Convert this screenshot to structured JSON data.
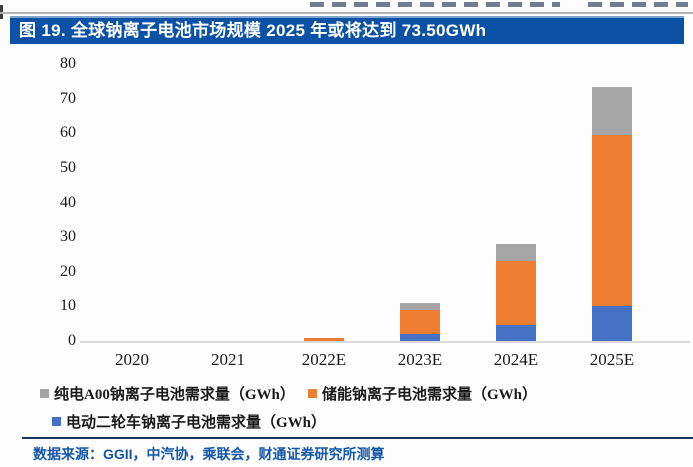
{
  "figure": {
    "title": "图 19. 全球钠离子电池市场规模 2025 年或将达到 73.50GWh",
    "source": "数据来源：GGII，中汽协，乘联会，财通证券研究所测算"
  },
  "colors": {
    "title_bar_bg": "#0b52a6",
    "title_text": "#ffffff",
    "source_text": "#1257a8",
    "divider": "#17365d",
    "axis_line": "#d9d9d9",
    "bar_blue": "#4472C4",
    "bar_orange": "#ED7D31",
    "bar_gray": "#A5A5A5"
  },
  "chart_data": {
    "type": "bar",
    "stacked": true,
    "title": "图 19. 全球钠离子电池市场规模 2025 年或将达到 73.50GWh",
    "xlabel": "",
    "ylabel": "",
    "ylim": [
      0,
      80
    ],
    "yticks": [
      0,
      10,
      20,
      30,
      40,
      50,
      60,
      70,
      80
    ],
    "grid": false,
    "legend_position": "bottom",
    "categories": [
      "2020",
      "2021",
      "2022E",
      "2023E",
      "2024E",
      "2025E"
    ],
    "series": [
      {
        "name": "电动二轮车钠离子电池需求量（GWh）",
        "color": "#4472C4",
        "values": [
          0,
          0,
          0,
          2,
          4.5,
          10
        ]
      },
      {
        "name": "储能钠离子电池需求量（GWh）",
        "color": "#ED7D31",
        "values": [
          0,
          0,
          1,
          7,
          18.5,
          49.5
        ]
      },
      {
        "name": "纯电A00钠离子电池需求量（GWh）",
        "color": "#A5A5A5",
        "values": [
          0,
          0,
          0,
          2,
          5,
          14
        ]
      }
    ],
    "totals": [
      0,
      0,
      1,
      11,
      28,
      73.5
    ]
  },
  "legend": {
    "items": [
      {
        "label": "纯电A00钠离子电池需求量（GWh）",
        "color": "#A5A5A5"
      },
      {
        "label": "储能钠离子电池需求量（GWh）",
        "color": "#ED7D31"
      },
      {
        "label": "电动二轮车钠离子电池需求量（GWh）",
        "color": "#4472C4"
      }
    ]
  }
}
